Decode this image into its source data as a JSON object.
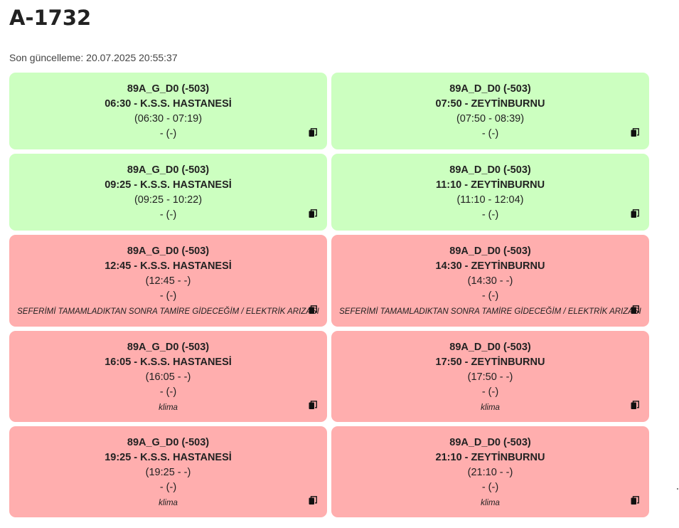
{
  "page": {
    "title": "A-1732",
    "updated": "Son güncelleme: 20.07.2025 20:55:37"
  },
  "cards": [
    {
      "status": "ok",
      "route": "89A_G_D0 (-503)",
      "departure": "06:30 - K.S.S. HASTANESİ",
      "window": "(06:30 - 07:19)",
      "extra": "- (-)",
      "note": "",
      "copy_icon": "copy-icon"
    },
    {
      "status": "ok",
      "route": "89A_D_D0 (-503)",
      "departure": "07:50 - ZEYTİNBURNU",
      "window": "(07:50 - 08:39)",
      "extra": "- (-)",
      "note": "",
      "copy_icon": "copy-icon"
    },
    {
      "status": "ok",
      "route": "89A_G_D0 (-503)",
      "departure": "09:25 - K.S.S. HASTANESİ",
      "window": "(09:25 - 10:22)",
      "extra": "- (-)",
      "note": "",
      "copy_icon": "copy-icon"
    },
    {
      "status": "ok",
      "route": "89A_D_D0 (-503)",
      "departure": "11:10 - ZEYTİNBURNU",
      "window": "(11:10 - 12:04)",
      "extra": "- (-)",
      "note": "",
      "copy_icon": "copy-icon"
    },
    {
      "status": "fault",
      "route": "89A_G_D0 (-503)",
      "departure": "12:45 - K.S.S. HASTANESİ",
      "window": "(12:45 - -)",
      "extra": "- (-)",
      "note": "SEFERİMİ TAMAMLADIKTAN SONRA TAMİRE GİDECEĞİM / ELEKTRİK ARIZASI",
      "copy_icon": "copy-icon"
    },
    {
      "status": "fault",
      "route": "89A_D_D0 (-503)",
      "departure": "14:30 - ZEYTİNBURNU",
      "window": "(14:30 - -)",
      "extra": "- (-)",
      "note": "SEFERİMİ TAMAMLADIKTAN SONRA TAMİRE GİDECEĞİM / ELEKTRİK ARIZASI",
      "copy_icon": "copy-icon"
    },
    {
      "status": "fault",
      "route": "89A_G_D0 (-503)",
      "departure": "16:05 - K.S.S. HASTANESİ",
      "window": "(16:05 - -)",
      "extra": "- (-)",
      "note": "klima",
      "copy_icon": "copy-icon"
    },
    {
      "status": "fault",
      "route": "89A_D_D0 (-503)",
      "departure": "17:50 - ZEYTİNBURNU",
      "window": "(17:50 - -)",
      "extra": "- (-)",
      "note": "klima",
      "copy_icon": "copy-icon"
    },
    {
      "status": "fault",
      "route": "89A_G_D0 (-503)",
      "departure": "19:25 - K.S.S. HASTANESİ",
      "window": "(19:25 - -)",
      "extra": "- (-)",
      "note": "klima",
      "copy_icon": "copy-icon"
    },
    {
      "status": "fault",
      "route": "89A_D_D0 (-503)",
      "departure": "21:10 - ZEYTİNBURNU",
      "window": "(21:10 - -)",
      "extra": "- (-)",
      "note": "klima",
      "copy_icon": "copy-icon"
    }
  ],
  "colors": {
    "ok": "#ccffc0",
    "fault": "#ffaeae"
  }
}
